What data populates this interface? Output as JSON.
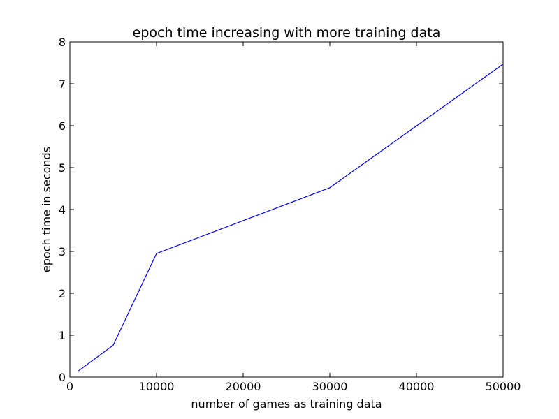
{
  "chart_data": {
    "type": "line",
    "title": "epoch time increasing with more training data",
    "xlabel": "number of games as training data",
    "ylabel": "epoch time in seconds",
    "xlim": [
      0,
      50000
    ],
    "ylim": [
      0,
      8
    ],
    "x_ticks": [
      "0",
      "10000",
      "20000",
      "30000",
      "40000",
      "50000"
    ],
    "y_ticks": [
      "0",
      "1",
      "2",
      "3",
      "4",
      "5",
      "6",
      "7",
      "8"
    ],
    "grid": false,
    "series": [
      {
        "color": "#0000ff",
        "x": [
          1000,
          5000,
          10000,
          30000,
          50000
        ],
        "y": [
          0.15,
          0.76,
          2.95,
          4.52,
          7.47
        ]
      }
    ]
  }
}
